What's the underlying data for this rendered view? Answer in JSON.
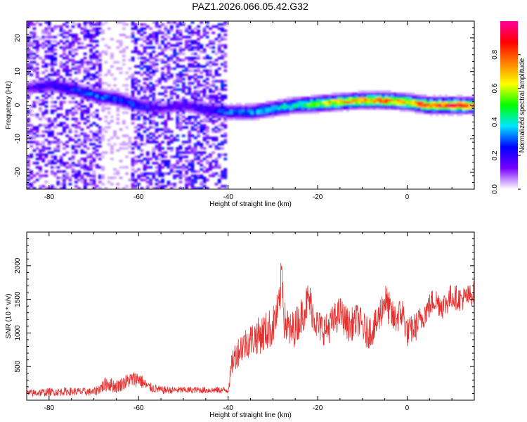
{
  "title": "PAZ1.2026.066.05.42.G32",
  "chart_data": [
    {
      "type": "heatmap",
      "panel": "top",
      "xlabel": "Height of straight line (km)",
      "ylabel": "Frequency (Hz)",
      "xlim": [
        -85,
        15
      ],
      "ylim": [
        -25,
        25
      ],
      "xticks": [
        -80,
        -60,
        -40,
        -20,
        0
      ],
      "yticks": [
        -20,
        -10,
        0,
        10,
        20
      ],
      "colorbar": {
        "label": "Normalized spectral amplitude",
        "range": [
          0,
          1
        ],
        "ticks": [
          0.0,
          0.2,
          0.4,
          0.6,
          0.8
        ],
        "colors": [
          "#ffffff",
          "#7800ff",
          "#0000ff",
          "#00e6ff",
          "#00ff00",
          "#ffff00",
          "#ff8000",
          "#ff0000",
          "#ff00a0"
        ]
      },
      "ridge": {
        "x": [
          -85,
          -80,
          -75,
          -70,
          -65,
          -60,
          -55,
          -50,
          -45,
          -40,
          -35,
          -30,
          -25,
          -20,
          -15,
          -10,
          -5,
          0,
          5,
          10,
          15
        ],
        "freq": [
          5,
          6,
          5,
          3,
          2,
          0,
          -1,
          0,
          -1,
          -2,
          -2,
          -1,
          0,
          0.5,
          1,
          1.5,
          1.5,
          1,
          0,
          0,
          0
        ],
        "amplitude": [
          0.15,
          0.2,
          0.25,
          0.3,
          0.3,
          0.25,
          0.15,
          0.15,
          0.2,
          0.3,
          0.35,
          0.4,
          0.45,
          0.6,
          0.7,
          0.75,
          0.8,
          0.7,
          0.85,
          0.9,
          0.8
        ]
      }
    },
    {
      "type": "line",
      "panel": "bottom",
      "xlabel": "Height of straight line (km)",
      "ylabel": "SNR (10 * v/v)",
      "xlim": [
        -85,
        15
      ],
      "ylim": [
        0,
        2500
      ],
      "xticks": [
        -80,
        -60,
        -40,
        -20,
        0
      ],
      "yticks": [
        500,
        1000,
        1500,
        2000
      ],
      "color": "#e8302e",
      "series": [
        {
          "name": "SNR",
          "x": [
            -85,
            -80,
            -75,
            -70,
            -67,
            -65,
            -62,
            -60,
            -58,
            -55,
            -50,
            -45,
            -40,
            -39,
            -37,
            -35,
            -32,
            -30,
            -28.5,
            -28,
            -27.5,
            -26,
            -24,
            -22,
            -20,
            -18,
            -15,
            -13,
            -11,
            -9,
            -7,
            -5,
            -3,
            -1,
            0,
            2,
            4,
            6,
            8,
            10,
            12,
            14,
            15
          ],
          "base": [
            100,
            120,
            130,
            120,
            250,
            200,
            300,
            320,
            200,
            150,
            150,
            150,
            150,
            600,
            800,
            900,
            1000,
            1100,
            1400,
            2000,
            1200,
            1000,
            1200,
            1500,
            1100,
            1050,
            1300,
            1100,
            1200,
            1000,
            1100,
            1500,
            1200,
            1300,
            1000,
            1100,
            1300,
            1500,
            1400,
            1550,
            1500,
            1550,
            1600
          ],
          "noise": [
            60,
            60,
            60,
            60,
            120,
            100,
            120,
            120,
            80,
            60,
            50,
            50,
            50,
            200,
            250,
            250,
            300,
            300,
            300,
            300,
            300,
            300,
            280,
            300,
            250,
            250,
            250,
            250,
            250,
            250,
            250,
            280,
            250,
            250,
            220,
            220,
            200,
            200,
            200,
            200,
            180,
            180,
            180
          ]
        }
      ]
    }
  ]
}
